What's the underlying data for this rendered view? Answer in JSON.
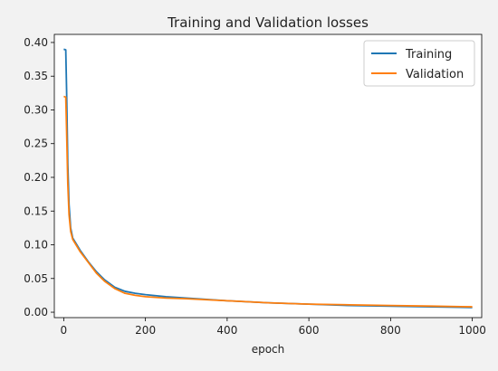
{
  "chart_data": {
    "type": "line",
    "title": "Training and Validation losses",
    "xlabel": "epoch",
    "ylabel": "",
    "xlim": [
      -23,
      1023
    ],
    "ylim": [
      -0.008,
      0.412
    ],
    "xticks": [
      0,
      200,
      400,
      600,
      800,
      1000
    ],
    "yticks": [
      0.0,
      0.05,
      0.1,
      0.15,
      0.2,
      0.25,
      0.3,
      0.35,
      0.4
    ],
    "ytick_labels": [
      "0.00",
      "0.05",
      "0.10",
      "0.15",
      "0.20",
      "0.25",
      "0.30",
      "0.35",
      "0.40"
    ],
    "xtick_labels": [
      "0",
      "200",
      "400",
      "600",
      "800",
      "1000"
    ],
    "grid": false,
    "legend_position": "top-right",
    "series": [
      {
        "name": "Training",
        "color": "#1f77b4",
        "x": [
          0,
          5,
          7,
          10,
          13,
          17,
          22,
          30,
          40,
          60,
          80,
          100,
          125,
          150,
          175,
          200,
          250,
          300,
          400,
          500,
          600,
          700,
          800,
          900,
          1000
        ],
        "y": [
          0.39,
          0.389,
          0.33,
          0.22,
          0.16,
          0.125,
          0.11,
          0.102,
          0.092,
          0.075,
          0.06,
          0.048,
          0.037,
          0.031,
          0.028,
          0.026,
          0.023,
          0.021,
          0.017,
          0.014,
          0.012,
          0.01,
          0.009,
          0.008,
          0.007
        ]
      },
      {
        "name": "Validation",
        "color": "#ff7f0e",
        "x": [
          0,
          5,
          7,
          10,
          13,
          17,
          22,
          30,
          40,
          60,
          80,
          100,
          125,
          150,
          175,
          200,
          250,
          300,
          400,
          500,
          600,
          700,
          800,
          900,
          1000
        ],
        "y": [
          0.32,
          0.319,
          0.27,
          0.19,
          0.145,
          0.12,
          0.108,
          0.1,
          0.09,
          0.074,
          0.058,
          0.046,
          0.035,
          0.028,
          0.025,
          0.023,
          0.021,
          0.02,
          0.017,
          0.014,
          0.012,
          0.011,
          0.01,
          0.009,
          0.008
        ]
      }
    ]
  }
}
